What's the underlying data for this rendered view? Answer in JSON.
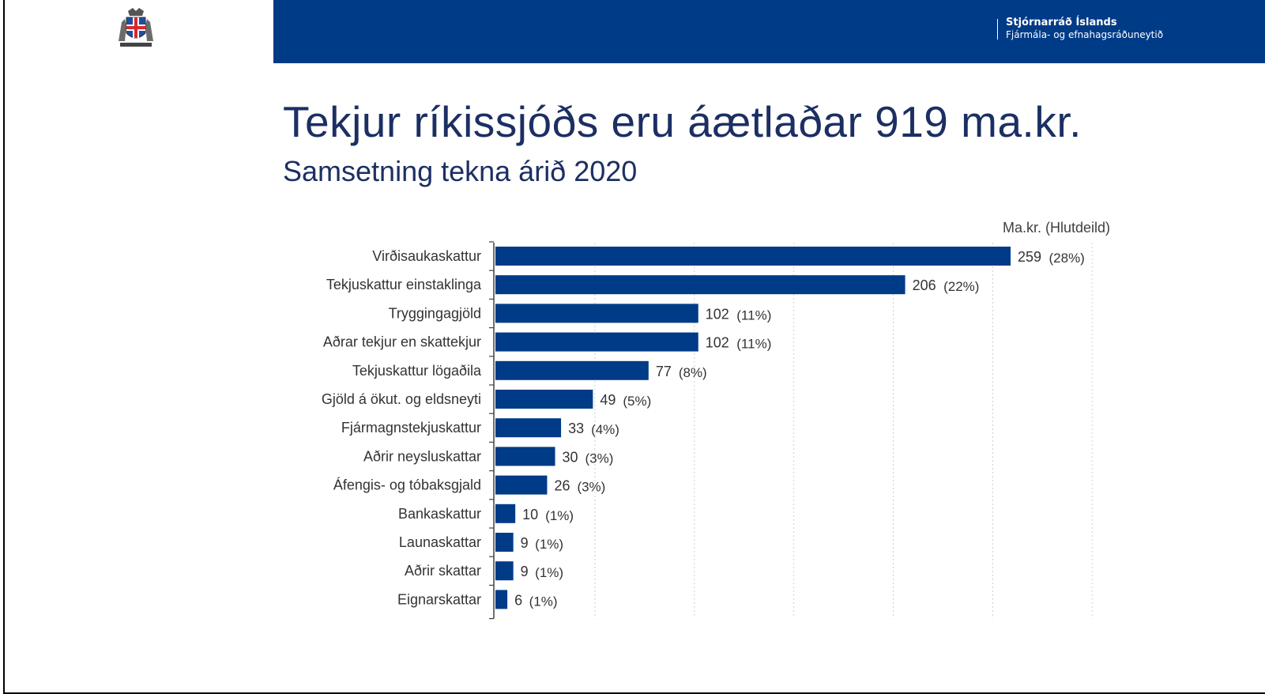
{
  "header": {
    "org_name": "Stjórnarráð Íslands",
    "org_sub": "Fjármála- og efnahagsráðuneytið",
    "bar_color": "#003b87",
    "crest_icon": "icelandic-coat-of-arms-icon"
  },
  "page": {
    "title": "Tekjur ríkissjóðs eru áætlaðar 919 ma.kr.",
    "subtitle": "Samsetning tekna árið 2020"
  },
  "chart_data": {
    "type": "bar",
    "orientation": "horizontal",
    "unit_label": "Ma.kr. (Hlutdeild)",
    "categories": [
      "Virðisaukaskattur",
      "Tekjuskattur einstaklinga",
      "Tryggingagjöld",
      "Aðrar tekjur en skattekjur",
      "Tekjuskattur lögaðila",
      "Gjöld á ökut. og eldsneyti",
      "Fjármagnstekjuskattur",
      "Aðrir neysluskattar",
      "Áfengis- og tóbaksgjald",
      "Bankaskattur",
      "Launaskattar",
      "Aðrir skattar",
      "Eignarskattar"
    ],
    "values": [
      259,
      206,
      102,
      102,
      77,
      49,
      33,
      30,
      26,
      10,
      9,
      9,
      6
    ],
    "shares": [
      "(28%)",
      "(22%)",
      "(11%)",
      "(11%)",
      "(8%)",
      "(5%)",
      "(4%)",
      "(3%)",
      "(3%)",
      "(1%)",
      "(1%)",
      "(1%)",
      "(1%)"
    ],
    "xlim": [
      0,
      300
    ],
    "grid_step": 50,
    "grid": true,
    "bar_color": "#003b87"
  }
}
